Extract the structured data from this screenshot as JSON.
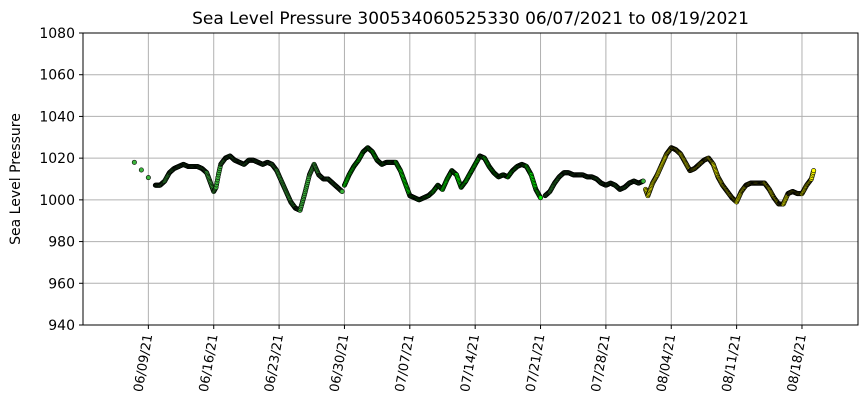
{
  "chart_data": {
    "type": "scatter",
    "title": "Sea Level Pressure 300534060525330  06/07/2021 to 08/19/2021",
    "xlabel": "",
    "ylabel": "Sea Level Pressure",
    "xlim": [
      "2021-06-02",
      "2021-08-24"
    ],
    "ylim": [
      940,
      1080
    ],
    "yticks": [
      940,
      960,
      980,
      1000,
      1020,
      1040,
      1060,
      1080
    ],
    "xticks": [
      "2021-06-09",
      "2021-06-16",
      "2021-06-23",
      "2021-06-30",
      "2021-07-07",
      "2021-07-14",
      "2021-07-21",
      "2021-07-28",
      "2021-08-04",
      "2021-08-11",
      "2021-08-18"
    ],
    "xtick_labels": [
      "06/09/21",
      "06/16/21",
      "06/23/21",
      "06/30/21",
      "07/07/21",
      "07/14/21",
      "07/21/21",
      "07/28/21",
      "08/04/21",
      "08/11/21",
      "08/18/21"
    ],
    "grid": true,
    "colors": {
      "early": "#3cb43c",
      "mid": "#00ee00",
      "late": "#ffff00",
      "edge": "#000000"
    },
    "series": [
      {
        "color": "#3cb43c",
        "x": [
          "2021-06-07T12:00",
          "2021-06-09T18:00",
          "2021-06-10T06:00",
          "2021-06-10T18:00",
          "2021-06-11T06:00",
          "2021-06-11T18:00",
          "2021-06-12T06:00",
          "2021-06-12T18:00",
          "2021-06-13T06:00",
          "2021-06-13T18:00",
          "2021-06-14T06:00",
          "2021-06-14T18:00",
          "2021-06-15T06:00",
          "2021-06-15T12:00",
          "2021-06-15T18:00",
          "2021-06-16T00:00",
          "2021-06-16T06:00",
          "2021-06-16T12:00",
          "2021-06-16T18:00",
          "2021-06-17T06:00",
          "2021-06-17T18:00",
          "2021-06-18T06:00",
          "2021-06-18T18:00",
          "2021-06-19T06:00",
          "2021-06-19T18:00",
          "2021-06-20T06:00",
          "2021-06-20T18:00",
          "2021-06-21T06:00",
          "2021-06-21T18:00",
          "2021-06-22T06:00",
          "2021-06-22T18:00",
          "2021-06-23T06:00",
          "2021-06-23T18:00",
          "2021-06-24T06:00",
          "2021-06-24T18:00",
          "2021-06-25T06:00",
          "2021-06-25T18:00",
          "2021-06-26T06:00",
          "2021-06-26T18:00",
          "2021-06-27T06:00",
          "2021-06-27T18:00",
          "2021-06-28T06:00",
          "2021-06-28T18:00",
          "2021-06-29T06:00",
          "2021-06-29T18:00"
        ],
        "y": [
          1018,
          1007,
          1007,
          1009,
          1013,
          1015,
          1016,
          1017,
          1016,
          1016,
          1016,
          1015,
          1013,
          1010,
          1007,
          1004,
          1006,
          1012,
          1017,
          1020,
          1021,
          1019,
          1018,
          1017,
          1019,
          1019,
          1018,
          1017,
          1018,
          1017,
          1014,
          1009,
          1004,
          999,
          996,
          995,
          1003,
          1012,
          1017,
          1012,
          1010,
          1010,
          1008,
          1006,
          1004
        ]
      },
      {
        "color": "#00ee00",
        "x": [
          "2021-06-30T00:00",
          "2021-06-30T12:00",
          "2021-07-01T00:00",
          "2021-07-01T12:00",
          "2021-07-02T00:00",
          "2021-07-02T12:00",
          "2021-07-03T00:00",
          "2021-07-03T12:00",
          "2021-07-04T00:00",
          "2021-07-04T12:00",
          "2021-07-05T00:00",
          "2021-07-05T12:00",
          "2021-07-06T00:00",
          "2021-07-06T12:00",
          "2021-07-07T00:00",
          "2021-07-07T12:00",
          "2021-07-08T00:00",
          "2021-07-08T12:00",
          "2021-07-09T00:00",
          "2021-07-09T12:00",
          "2021-07-10T00:00",
          "2021-07-10T12:00",
          "2021-07-11T00:00",
          "2021-07-11T12:00",
          "2021-07-12T00:00",
          "2021-07-12T12:00",
          "2021-07-13T00:00",
          "2021-07-13T12:00",
          "2021-07-14T00:00",
          "2021-07-14T12:00",
          "2021-07-15T00:00",
          "2021-07-15T12:00",
          "2021-07-16T00:00",
          "2021-07-16T12:00",
          "2021-07-17T00:00",
          "2021-07-17T12:00",
          "2021-07-18T00:00",
          "2021-07-18T12:00",
          "2021-07-19T00:00",
          "2021-07-19T12:00",
          "2021-07-20T00:00",
          "2021-07-20T12:00",
          "2021-07-21T00:00"
        ],
        "y": [
          1007,
          1012,
          1016,
          1019,
          1023,
          1025,
          1023,
          1019,
          1017,
          1018,
          1018,
          1018,
          1014,
          1008,
          1002,
          1001,
          1000,
          1001,
          1002,
          1004,
          1007,
          1005,
          1010,
          1014,
          1012,
          1006,
          1009,
          1013,
          1017,
          1021,
          1020,
          1016,
          1013,
          1011,
          1012,
          1011,
          1014,
          1016,
          1017,
          1016,
          1012,
          1005,
          1001
        ]
      },
      {
        "color": "#3cb43c",
        "x": [
          "2021-07-21T12:00",
          "2021-07-22T00:00",
          "2021-07-22T12:00",
          "2021-07-23T00:00",
          "2021-07-23T12:00",
          "2021-07-24T00:00",
          "2021-07-24T12:00",
          "2021-07-25T00:00",
          "2021-07-25T12:00",
          "2021-07-26T00:00",
          "2021-07-26T12:00",
          "2021-07-27T00:00",
          "2021-07-27T12:00",
          "2021-07-28T00:00",
          "2021-07-28T12:00",
          "2021-07-29T00:00",
          "2021-07-29T12:00",
          "2021-07-30T00:00",
          "2021-07-30T12:00",
          "2021-07-31T00:00",
          "2021-07-31T12:00",
          "2021-08-01T00:00"
        ],
        "y": [
          1002,
          1004,
          1008,
          1011,
          1013,
          1013,
          1012,
          1012,
          1012,
          1011,
          1011,
          1010,
          1008,
          1007,
          1008,
          1007,
          1005,
          1006,
          1008,
          1009,
          1008,
          1009
        ]
      },
      {
        "color": "#ffff00",
        "x": [
          "2021-08-01T06:00",
          "2021-08-01T12:00",
          "2021-08-02T00:00",
          "2021-08-02T12:00",
          "2021-08-03T00:00",
          "2021-08-03T12:00",
          "2021-08-04T00:00",
          "2021-08-04T12:00",
          "2021-08-05T00:00",
          "2021-08-05T12:00",
          "2021-08-06T00:00",
          "2021-08-06T12:00",
          "2021-08-07T00:00",
          "2021-08-07T12:00",
          "2021-08-08T00:00",
          "2021-08-08T12:00",
          "2021-08-09T00:00",
          "2021-08-09T12:00",
          "2021-08-10T00:00",
          "2021-08-10T12:00",
          "2021-08-11T00:00",
          "2021-08-11T12:00",
          "2021-08-12T00:00",
          "2021-08-12T12:00",
          "2021-08-13T00:00",
          "2021-08-13T12:00",
          "2021-08-14T00:00",
          "2021-08-14T12:00",
          "2021-08-15T00:00",
          "2021-08-15T12:00",
          "2021-08-16T00:00",
          "2021-08-16T12:00",
          "2021-08-17T00:00",
          "2021-08-17T12:00",
          "2021-08-18T00:00",
          "2021-08-18T12:00",
          "2021-08-19T00:00",
          "2021-08-19T06:00"
        ],
        "y": [
          1005,
          1002,
          1008,
          1012,
          1017,
          1022,
          1025,
          1024,
          1022,
          1018,
          1014,
          1015,
          1017,
          1019,
          1020,
          1017,
          1011,
          1007,
          1004,
          1001,
          999,
          1004,
          1007,
          1008,
          1008,
          1008,
          1008,
          1005,
          1001,
          998,
          998,
          1003,
          1004,
          1003,
          1003,
          1007,
          1010,
          1014
        ]
      }
    ]
  }
}
